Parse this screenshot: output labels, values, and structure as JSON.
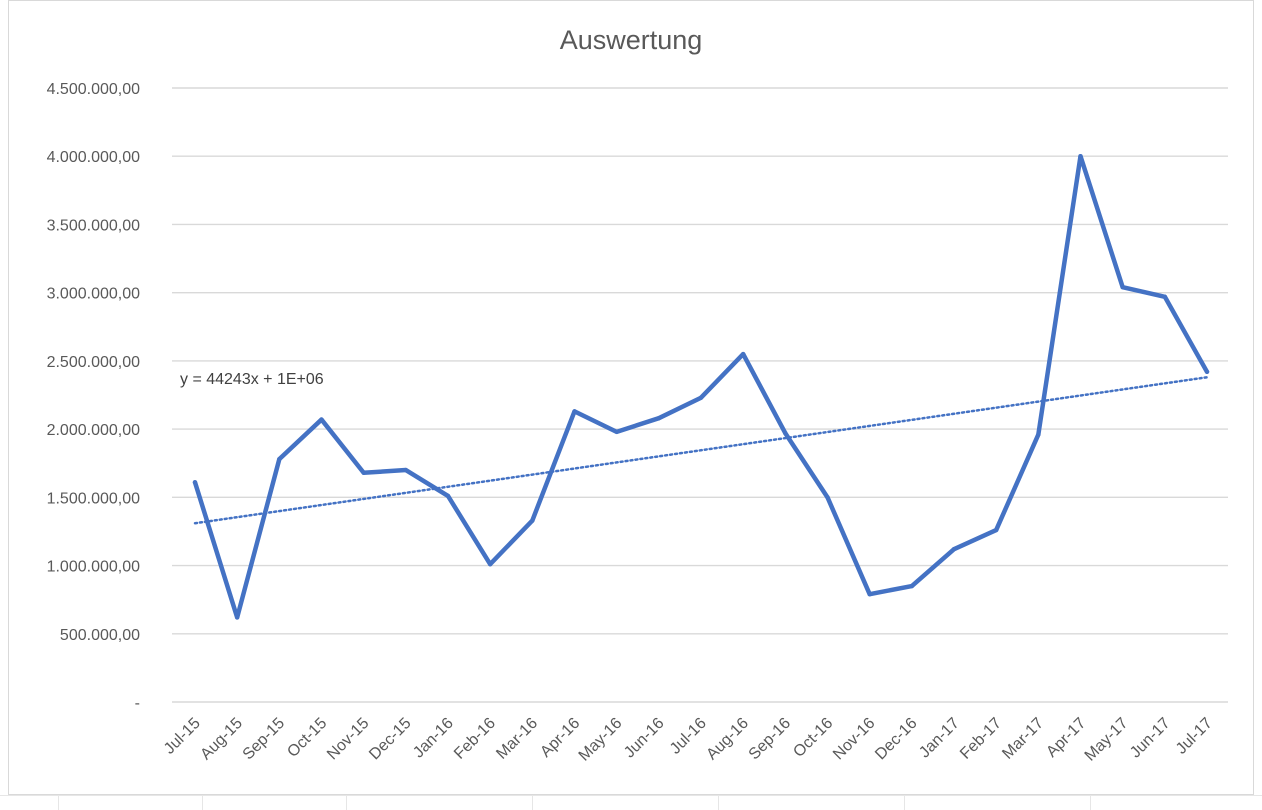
{
  "chart_data": {
    "type": "line",
    "title": "Auswertung",
    "xlabel": "",
    "ylabel": "",
    "ylim": [
      0,
      4500000
    ],
    "yticks": [
      0,
      500000,
      1000000,
      1500000,
      2000000,
      2500000,
      3000000,
      3500000,
      4000000,
      4500000
    ],
    "ytick_labels": [
      "-",
      "500.000,00",
      "1.000.000,00",
      "1.500.000,00",
      "2.000.000,00",
      "2.500.000,00",
      "3.000.000,00",
      "3.500.000,00",
      "4.000.000,00",
      "4.500.000,00"
    ],
    "grid": true,
    "legend": "none",
    "categories": [
      "Jul-15",
      "Aug-15",
      "Sep-15",
      "Oct-15",
      "Nov-15",
      "Dec-15",
      "Jan-16",
      "Feb-16",
      "Mar-16",
      "Apr-16",
      "May-16",
      "Jun-16",
      "Jul-16",
      "Aug-16",
      "Sep-16",
      "Oct-16",
      "Nov-16",
      "Dec-16",
      "Jan-17",
      "Feb-17",
      "Mar-17",
      "Apr-17",
      "May-17",
      "Jun-17",
      "Jul-17"
    ],
    "series": [
      {
        "color": "#4472C4",
        "values": [
          1610000,
          620000,
          1780000,
          2070000,
          1680000,
          1700000,
          1510000,
          1010000,
          1330000,
          2130000,
          1980000,
          2080000,
          2230000,
          2550000,
          1970000,
          1500000,
          790000,
          850000,
          1120000,
          1260000,
          1960000,
          4000000,
          3040000,
          2970000,
          2420000
        ]
      }
    ],
    "trendline": {
      "type": "linear",
      "style": "dotted",
      "color": "#4472C4",
      "start_value": 1310000,
      "end_value": 2380000,
      "equation_label": "y = 44243x + 1E+06"
    }
  }
}
